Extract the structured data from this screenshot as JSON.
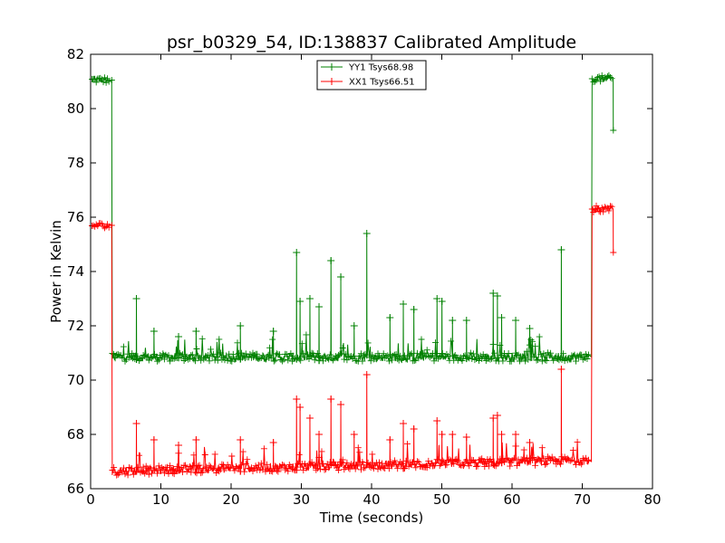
{
  "chart_data": {
    "type": "line",
    "title": "psr_b0329_54, ID:138837 Calibrated Amplitude",
    "xlabel": "Time (seconds)",
    "ylabel": "Power in Kelvin",
    "xlim": [
      0,
      80
    ],
    "ylim": [
      66,
      82
    ],
    "xticks": [
      "0",
      "10",
      "20",
      "30",
      "40",
      "50",
      "60",
      "70",
      "80"
    ],
    "yticks": [
      "66",
      "68",
      "70",
      "72",
      "74",
      "76",
      "78",
      "80",
      "82"
    ],
    "legend": {
      "location": "upper center"
    },
    "grid": false,
    "series": [
      {
        "name": "YY1 Tsys68.98",
        "color": "#008000",
        "marker": "+",
        "segments": [
          {
            "x_start": 0.2,
            "x_end": 2.8,
            "level": 81.05
          },
          {
            "x_start": 3.1,
            "x_end": 71.0,
            "level": 70.85
          },
          {
            "x_start": 71.5,
            "x_end": 74.2,
            "level": 81.1
          }
        ],
        "transitions": [
          {
            "x": 3.0,
            "from": 81.05,
            "to": 70.85
          },
          {
            "x": 71.3,
            "from": 70.85,
            "to": 81.1
          },
          {
            "x": 74.4,
            "from": 81.1,
            "to": 79.2
          }
        ],
        "spikes": [
          {
            "x": 6.5,
            "y": 73.0
          },
          {
            "x": 9.0,
            "y": 71.8
          },
          {
            "x": 12.5,
            "y": 71.6
          },
          {
            "x": 15.0,
            "y": 71.8
          },
          {
            "x": 21.3,
            "y": 72.0
          },
          {
            "x": 26.0,
            "y": 71.8
          },
          {
            "x": 29.3,
            "y": 74.7
          },
          {
            "x": 29.8,
            "y": 72.9
          },
          {
            "x": 31.2,
            "y": 73.0
          },
          {
            "x": 32.5,
            "y": 72.7
          },
          {
            "x": 34.2,
            "y": 74.4
          },
          {
            "x": 35.6,
            "y": 73.8
          },
          {
            "x": 37.5,
            "y": 72.0
          },
          {
            "x": 39.3,
            "y": 75.4
          },
          {
            "x": 42.6,
            "y": 72.3
          },
          {
            "x": 44.5,
            "y": 72.8
          },
          {
            "x": 46.0,
            "y": 72.6
          },
          {
            "x": 49.3,
            "y": 73.0
          },
          {
            "x": 50.0,
            "y": 72.9
          },
          {
            "x": 51.5,
            "y": 72.2
          },
          {
            "x": 53.5,
            "y": 72.2
          },
          {
            "x": 57.3,
            "y": 73.2
          },
          {
            "x": 57.9,
            "y": 73.1
          },
          {
            "x": 58.5,
            "y": 72.3
          },
          {
            "x": 60.5,
            "y": 72.2
          },
          {
            "x": 62.5,
            "y": 71.9
          },
          {
            "x": 67.0,
            "y": 74.8
          }
        ]
      },
      {
        "name": "XX1 Tsys66.51",
        "color": "#ff0000",
        "marker": "+",
        "segments": [
          {
            "x_start": 0.2,
            "x_end": 2.8,
            "level": 75.7
          },
          {
            "x_start": 3.1,
            "x_end": 71.0,
            "level": 66.75
          },
          {
            "x_start": 71.5,
            "x_end": 74.2,
            "level": 76.3
          }
        ],
        "transitions": [
          {
            "x": 3.0,
            "from": 75.7,
            "to": 66.5
          },
          {
            "x": 71.3,
            "from": 67.0,
            "to": 76.3
          },
          {
            "x": 74.4,
            "from": 76.3,
            "to": 74.7
          }
        ],
        "spikes": [
          {
            "x": 6.5,
            "y": 68.4
          },
          {
            "x": 9.0,
            "y": 67.8
          },
          {
            "x": 12.5,
            "y": 67.6
          },
          {
            "x": 15.0,
            "y": 67.8
          },
          {
            "x": 21.3,
            "y": 67.8
          },
          {
            "x": 26.0,
            "y": 67.7
          },
          {
            "x": 29.3,
            "y": 69.3
          },
          {
            "x": 29.8,
            "y": 69.0
          },
          {
            "x": 31.2,
            "y": 68.6
          },
          {
            "x": 32.5,
            "y": 68.0
          },
          {
            "x": 34.2,
            "y": 69.3
          },
          {
            "x": 35.6,
            "y": 69.1
          },
          {
            "x": 37.5,
            "y": 68.0
          },
          {
            "x": 39.3,
            "y": 70.2
          },
          {
            "x": 42.6,
            "y": 67.8
          },
          {
            "x": 44.5,
            "y": 68.4
          },
          {
            "x": 46.0,
            "y": 68.2
          },
          {
            "x": 49.3,
            "y": 68.5
          },
          {
            "x": 50.0,
            "y": 68.0
          },
          {
            "x": 51.5,
            "y": 68.0
          },
          {
            "x": 53.5,
            "y": 67.9
          },
          {
            "x": 57.3,
            "y": 68.6
          },
          {
            "x": 57.9,
            "y": 68.7
          },
          {
            "x": 58.5,
            "y": 68.0
          },
          {
            "x": 60.5,
            "y": 68.0
          },
          {
            "x": 62.5,
            "y": 67.7
          },
          {
            "x": 67.0,
            "y": 70.4
          }
        ]
      }
    ]
  }
}
